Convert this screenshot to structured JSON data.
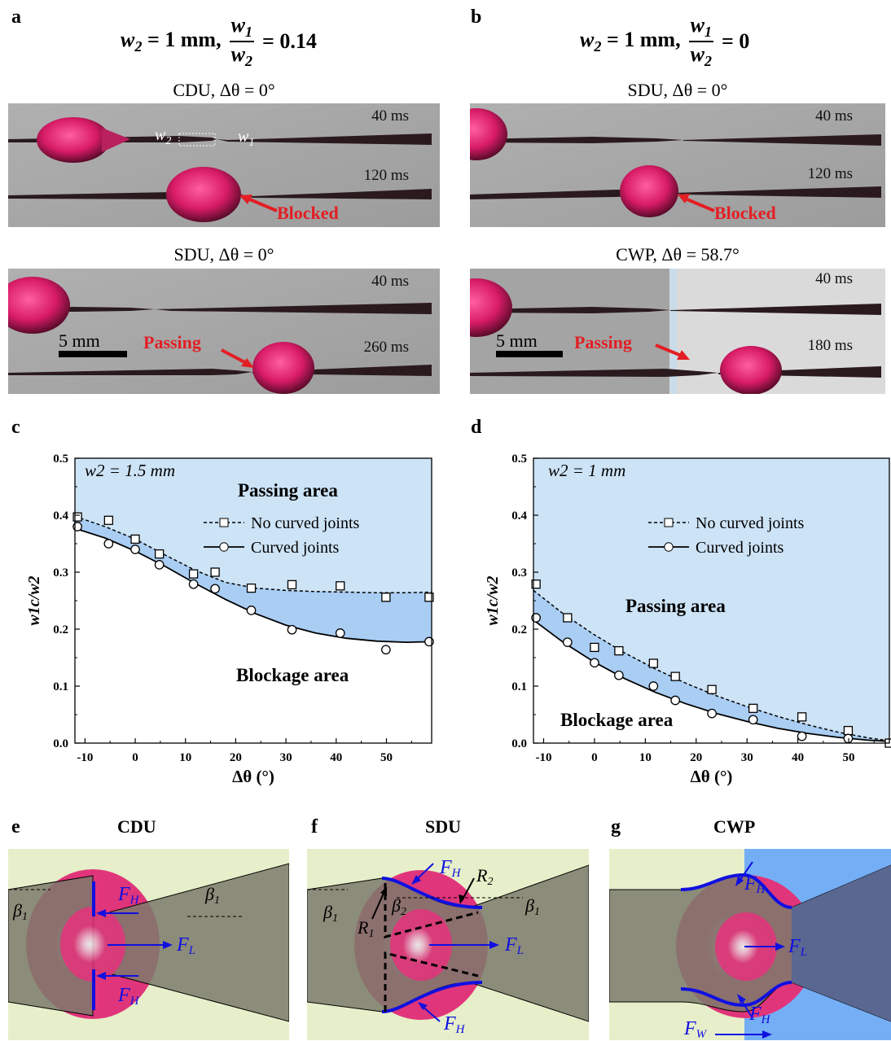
{
  "panels": {
    "a": {
      "label": "a",
      "equation": {
        "w2": "w",
        "w2_sub": "2",
        "eq_text": "= 1 mm,",
        "frac_num_w": "w",
        "frac_num_sub": "1",
        "frac_den_w": "w",
        "frac_den_sub": "2",
        "value": "= 0.14"
      },
      "top": {
        "title": "CDU, Δθ = 0°",
        "times": [
          "40 ms",
          "120 ms"
        ],
        "status": "Blocked",
        "w2_label": "w",
        "w2_sub": "2",
        "w1_label": "w",
        "w1_sub": "1"
      },
      "bottom": {
        "title": "SDU, Δθ = 0°",
        "times": [
          "40 ms",
          "260 ms"
        ],
        "status": "Passing",
        "scale": "5 mm"
      }
    },
    "b": {
      "label": "b",
      "equation": {
        "w2": "w",
        "w2_sub": "2",
        "eq_text": "= 1 mm,",
        "frac_num_w": "w",
        "frac_num_sub": "1",
        "frac_den_w": "w",
        "frac_den_sub": "2",
        "value": "= 0"
      },
      "top": {
        "title": "SDU, Δθ = 0°",
        "times": [
          "40 ms",
          "120 ms"
        ],
        "status": "Blocked"
      },
      "bottom": {
        "title": "CWP, Δθ = 58.7°",
        "times": [
          "40 ms",
          "180 ms"
        ],
        "status": "Passing",
        "scale": "5 mm"
      }
    },
    "c": {
      "label": "c"
    },
    "d": {
      "label": "d"
    },
    "e": {
      "label": "e",
      "title": "CDU",
      "labels": {
        "FH_top": "F",
        "FH_bottom": "F",
        "FL": "F",
        "H": "H",
        "L": "L",
        "beta": "β",
        "beta_sub": "1"
      }
    },
    "f": {
      "label": "f",
      "title": "SDU",
      "labels": {
        "F": "F",
        "H": "H",
        "L": "L",
        "R1": "R",
        "R1_sub": "1",
        "R2": "R",
        "R2_sub": "2",
        "beta": "β",
        "beta1_sub": "1",
        "beta2_sub": "2"
      }
    },
    "g": {
      "label": "g",
      "title": "CWP",
      "labels": {
        "F": "F",
        "H": "H",
        "L": "L",
        "W": "W"
      }
    }
  },
  "colors": {
    "droplet": "#e0357a",
    "substrate_green": "#e6efc9",
    "substrate_blue": "#74aef5",
    "wedge": "#7b7a6c",
    "wedge_dark": "#5a6790",
    "force": "#1010e0",
    "region_top": "#cde3f6",
    "region_mid": "#a9cdf3",
    "red": "#e31e24"
  },
  "chart_data": [
    {
      "type": "line",
      "panel": "c",
      "annotation": "w2 = 1.5 mm",
      "region_top": "Passing area",
      "region_bottom": "Blockage area",
      "xlabel": "Δθ (°)",
      "ylabel": "w1c/w2",
      "xlim": [
        -12,
        59
      ],
      "ylim": [
        0,
        0.5
      ],
      "xticks": [
        -10,
        0,
        10,
        20,
        30,
        40,
        50
      ],
      "yticks": [
        0.0,
        0.1,
        0.2,
        0.3,
        0.4,
        0.5
      ],
      "legend_position": "top-right",
      "series": [
        {
          "name": "No curved joints",
          "marker": "square",
          "line": "dashed",
          "x": [
            -11.5,
            -5.3,
            0,
            4.8,
            11.6,
            15.9,
            23.1,
            31.2,
            40.8,
            49.9,
            58.5
          ],
          "y": [
            0.397,
            0.391,
            0.358,
            0.332,
            0.297,
            0.3,
            0.272,
            0.278,
            0.276,
            0.256,
            0.256
          ],
          "fit_x": [
            -12,
            -6,
            0,
            6,
            12,
            18,
            24,
            30,
            36,
            42,
            48,
            54,
            59
          ],
          "fit_y": [
            0.398,
            0.38,
            0.358,
            0.33,
            0.303,
            0.282,
            0.272,
            0.268,
            0.266,
            0.265,
            0.264,
            0.264,
            0.265
          ]
        },
        {
          "name": "Curved joints",
          "marker": "circle",
          "line": "solid",
          "x": [
            -11.5,
            -5.3,
            0,
            4.8,
            11.6,
            15.9,
            23.1,
            31.2,
            40.8,
            49.9,
            58.5
          ],
          "y": [
            0.38,
            0.35,
            0.34,
            0.313,
            0.279,
            0.271,
            0.233,
            0.199,
            0.193,
            0.164,
            0.178
          ],
          "fit_x": [
            -12,
            -6,
            0,
            6,
            12,
            18,
            24,
            30,
            36,
            42,
            48,
            54,
            59
          ],
          "fit_y": [
            0.377,
            0.36,
            0.337,
            0.31,
            0.28,
            0.252,
            0.227,
            0.207,
            0.193,
            0.184,
            0.179,
            0.177,
            0.178
          ]
        }
      ]
    },
    {
      "type": "line",
      "panel": "d",
      "annotation": "w2 = 1 mm",
      "region_top": "Passing area",
      "region_bottom": "Blockage area",
      "xlabel": "Δθ (°)",
      "ylabel": "w1c/w2",
      "xlim": [
        -12,
        58
      ],
      "ylim": [
        0,
        0.5
      ],
      "xticks": [
        -10,
        0,
        10,
        20,
        30,
        40,
        50
      ],
      "yticks": [
        0.0,
        0.1,
        0.2,
        0.3,
        0.4,
        0.5
      ],
      "legend_position": "top-right",
      "series": [
        {
          "name": "No curved joints",
          "marker": "square",
          "line": "dashed",
          "x": [
            -11.5,
            -5.3,
            0,
            4.8,
            11.6,
            15.9,
            23.1,
            31.2,
            40.8,
            49.9,
            58.0
          ],
          "y": [
            0.279,
            0.22,
            0.168,
            0.162,
            0.14,
            0.117,
            0.094,
            0.061,
            0.046,
            0.022,
            0.0
          ],
          "fit_x": [
            -12,
            -6,
            0,
            6,
            12,
            18,
            24,
            30,
            36,
            42,
            48,
            54,
            58
          ],
          "fit_y": [
            0.268,
            0.226,
            0.19,
            0.158,
            0.13,
            0.105,
            0.083,
            0.064,
            0.047,
            0.032,
            0.019,
            0.009,
            0.004
          ]
        },
        {
          "name": "Curved joints",
          "marker": "circle",
          "line": "solid",
          "x": [
            -11.5,
            -5.3,
            0,
            4.8,
            11.6,
            15.9,
            23.1,
            31.2,
            40.8,
            49.9
          ],
          "y": [
            0.22,
            0.177,
            0.141,
            0.119,
            0.1,
            0.075,
            0.052,
            0.041,
            0.012,
            0.008
          ],
          "fit_x": [
            -12,
            -6,
            0,
            6,
            12,
            18,
            24,
            30,
            36,
            42,
            48,
            54,
            58
          ],
          "fit_y": [
            0.216,
            0.176,
            0.142,
            0.113,
            0.089,
            0.069,
            0.052,
            0.038,
            0.026,
            0.017,
            0.01,
            0.005,
            0.003
          ]
        }
      ]
    }
  ]
}
